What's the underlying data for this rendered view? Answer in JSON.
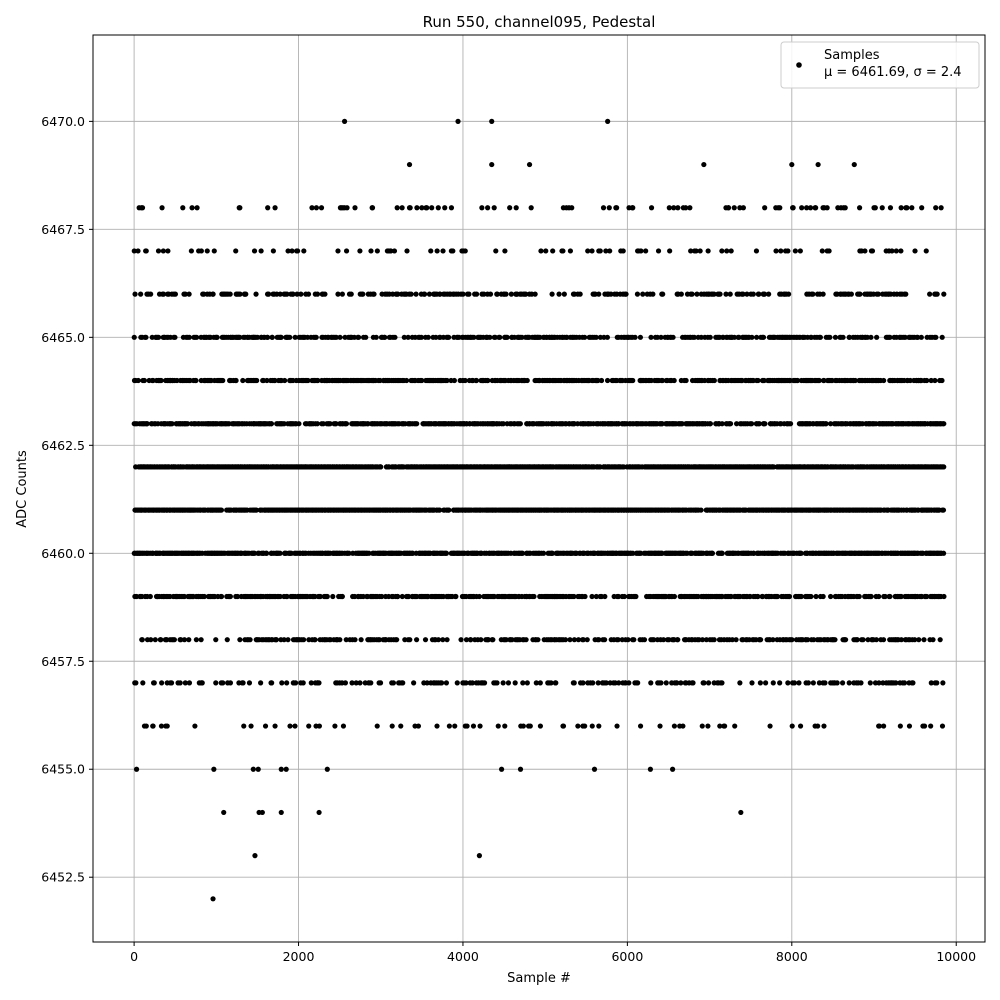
{
  "chart_data": {
    "type": "scatter",
    "title": "Run 550, channel095, Pedestal",
    "xlabel": "Sample #",
    "ylabel": "ADC Counts",
    "xlim": [
      -500,
      10350
    ],
    "ylim": [
      6451,
      6472
    ],
    "x_ticks": [
      0,
      2000,
      4000,
      6000,
      8000,
      10000
    ],
    "y_ticks": [
      6452.5,
      6455.0,
      6457.5,
      6460.0,
      6462.5,
      6465.0,
      6467.5,
      6470.0
    ],
    "x_tick_labels": [
      "0",
      "2000",
      "4000",
      "6000",
      "8000",
      "10000"
    ],
    "y_tick_labels": [
      "6452.5",
      "6455.0",
      "6457.5",
      "6460.0",
      "6462.5",
      "6465.0",
      "6467.5",
      "6470.0"
    ],
    "grid": true,
    "legend_position": "top-right",
    "marker_color": "#000000",
    "sample_count_range": [
      0,
      9840
    ],
    "series": [
      {
        "name": "Samples",
        "legend_line2": "μ = 6461.69, σ = 2.4",
        "color": "#000000",
        "level_density": [
          {
            "y": 6452,
            "density": 0.0
          },
          {
            "y": 6453,
            "density": 0.0
          },
          {
            "y": 6454,
            "density": 0.0
          },
          {
            "y": 6455,
            "density": 0.0
          },
          {
            "y": 6456,
            "density": 0.07
          },
          {
            "y": 6457,
            "density": 0.22
          },
          {
            "y": 6458,
            "density": 0.32
          },
          {
            "y": 6459,
            "density": 0.5
          },
          {
            "y": 6460,
            "density": 0.68
          },
          {
            "y": 6461,
            "density": 0.9
          },
          {
            "y": 6462,
            "density": 0.97
          },
          {
            "y": 6463,
            "density": 0.62
          },
          {
            "y": 6464,
            "density": 0.52
          },
          {
            "y": 6465,
            "density": 0.42
          },
          {
            "y": 6466,
            "density": 0.3
          },
          {
            "y": 6467,
            "density": 0.1
          },
          {
            "y": 6468,
            "density": 0.06
          },
          {
            "y": 6469,
            "density": 0.0
          },
          {
            "y": 6470,
            "density": 0.0
          }
        ],
        "sparse_points": [
          [
            960,
            6452
          ],
          [
            1470,
            6453
          ],
          [
            4200,
            6453
          ],
          [
            1090,
            6454
          ],
          [
            1520,
            6454
          ],
          [
            1560,
            6454
          ],
          [
            1790,
            6454
          ],
          [
            2250,
            6454
          ],
          [
            7380,
            6454
          ],
          [
            30,
            6455
          ],
          [
            970,
            6455
          ],
          [
            1450,
            6455
          ],
          [
            1510,
            6455
          ],
          [
            1790,
            6455
          ],
          [
            1850,
            6455
          ],
          [
            2350,
            6455
          ],
          [
            4470,
            6455
          ],
          [
            4700,
            6455
          ],
          [
            5600,
            6455
          ],
          [
            6280,
            6455
          ],
          [
            6550,
            6455
          ],
          [
            2560,
            6470
          ],
          [
            3940,
            6470
          ],
          [
            4350,
            6470
          ],
          [
            5760,
            6470
          ],
          [
            3350,
            6469
          ],
          [
            4350,
            6469
          ],
          [
            4810,
            6469
          ],
          [
            6930,
            6469
          ],
          [
            8000,
            6469
          ],
          [
            8320,
            6469
          ],
          [
            8760,
            6469
          ],
          [
            340,
            6468
          ],
          [
            2560,
            6468
          ],
          [
            2590,
            6468
          ],
          [
            2900,
            6468
          ],
          [
            3200,
            6468
          ],
          [
            3260,
            6468
          ],
          [
            3350,
            6468
          ],
          [
            3440,
            6468
          ],
          [
            3500,
            6468
          ],
          [
            3560,
            6468
          ],
          [
            3620,
            6468
          ],
          [
            3700,
            6468
          ],
          [
            3860,
            6468
          ],
          [
            4230,
            6468
          ],
          [
            4300,
            6468
          ],
          [
            4380,
            6468
          ],
          [
            4830,
            6468
          ],
          [
            5290,
            6468
          ],
          [
            5780,
            6468
          ],
          [
            5860,
            6468
          ],
          [
            6020,
            6468
          ],
          [
            6060,
            6468
          ],
          [
            6510,
            6468
          ],
          [
            6760,
            6468
          ],
          [
            7230,
            6468
          ],
          [
            7300,
            6468
          ],
          [
            7670,
            6468
          ],
          [
            8010,
            6468
          ],
          [
            8120,
            6468
          ],
          [
            8180,
            6468
          ],
          [
            8290,
            6468
          ],
          [
            8380,
            6468
          ],
          [
            8430,
            6468
          ],
          [
            8560,
            6468
          ],
          [
            8630,
            6468
          ],
          [
            9000,
            6468
          ],
          [
            9100,
            6468
          ],
          [
            9200,
            6468
          ],
          [
            9330,
            6468
          ],
          [
            9400,
            6468
          ],
          [
            9460,
            6468
          ],
          [
            9580,
            6468
          ]
        ]
      }
    ]
  }
}
